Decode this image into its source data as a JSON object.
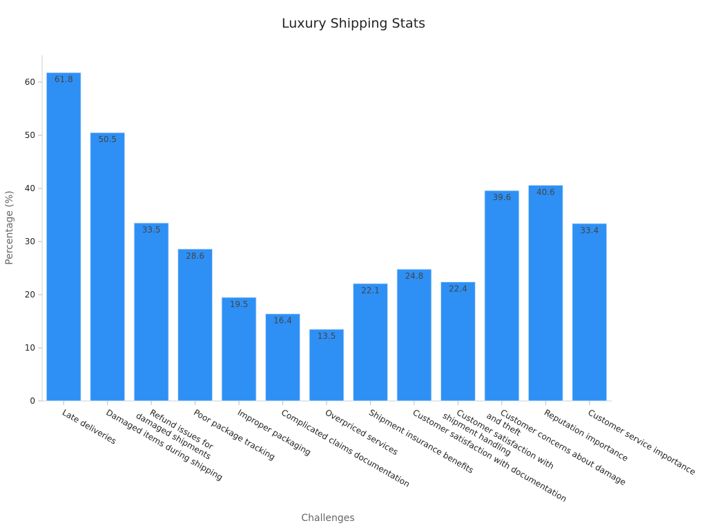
{
  "chart_data": {
    "type": "bar",
    "title": "Luxury Shipping Stats",
    "xlabel": "Challenges",
    "ylabel": "Percentage (%)",
    "ylim": [
      0,
      65
    ],
    "yticks": [
      0,
      10,
      20,
      30,
      40,
      50,
      60
    ],
    "grid": false,
    "bar_color": "#2e90f5",
    "categories": [
      [
        "Late deliveries"
      ],
      [
        "Damaged items during shipping"
      ],
      [
        "Refund issues for",
        "damaged shipments"
      ],
      [
        "Poor package tracking"
      ],
      [
        "Improper packaging"
      ],
      [
        "Complicated claims documentation"
      ],
      [
        "Overpriced services"
      ],
      [
        "Shipment insurance benefits"
      ],
      [
        "Customer satisfaction with documentation"
      ],
      [
        "Customer satisfaction with",
        "shipment handling"
      ],
      [
        "Customer concerns about damage",
        "and theft"
      ],
      [
        "Reputation importance"
      ],
      [
        "Customer service importance"
      ]
    ],
    "values": [
      61.8,
      50.5,
      33.5,
      28.6,
      19.5,
      16.4,
      13.5,
      22.1,
      24.8,
      22.4,
      39.6,
      40.6,
      33.4
    ]
  }
}
